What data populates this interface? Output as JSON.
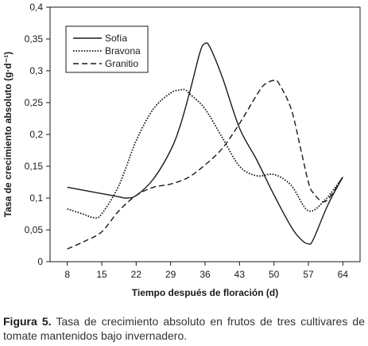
{
  "chart_data": {
    "type": "line",
    "xlabel": "Tiempo después de floración (d)",
    "ylabel": "Tasa de crecimiento absoluto (g·d⁻¹)",
    "x_ticks": [
      8,
      15,
      22,
      29,
      36,
      43,
      50,
      57,
      64
    ],
    "y_ticks": [
      "0",
      "0,05",
      "0,1",
      "0,15",
      "0,2",
      "0,25",
      "0,3",
      "0,35",
      "0,4"
    ],
    "xlim": [
      4.5,
      67.5
    ],
    "ylim": [
      0,
      0.4
    ],
    "grid": false,
    "legend_position": "top-left",
    "series": [
      {
        "name": "Sofía",
        "style": "solid",
        "x": [
          8,
          11.5,
          15,
          18.5,
          20,
          22,
          25.5,
          29,
          31,
          33,
          35,
          36,
          37,
          39.5,
          43,
          46.5,
          50,
          53.5,
          55.5,
          57,
          58,
          61,
          64
        ],
        "y": [
          0.117,
          0.112,
          0.107,
          0.102,
          0.1,
          0.104,
          0.13,
          0.175,
          0.215,
          0.27,
          0.33,
          0.343,
          0.337,
          0.29,
          0.21,
          0.16,
          0.105,
          0.055,
          0.035,
          0.028,
          0.035,
          0.09,
          0.133
        ]
      },
      {
        "name": "Bravona",
        "style": "dotted",
        "x": [
          8,
          11.5,
          13.5,
          15,
          18.5,
          22,
          25.5,
          29,
          31,
          32,
          33,
          36,
          39.5,
          43,
          46.5,
          50,
          53.5,
          57,
          60.5,
          64
        ],
        "y": [
          0.083,
          0.074,
          0.069,
          0.075,
          0.12,
          0.19,
          0.24,
          0.265,
          0.27,
          0.27,
          0.263,
          0.24,
          0.195,
          0.15,
          0.135,
          0.137,
          0.12,
          0.08,
          0.098,
          0.133
        ]
      },
      {
        "name": "Granitio",
        "style": "dashed",
        "x": [
          8,
          11.5,
          15,
          18.5,
          22,
          25.5,
          29,
          32.5,
          36,
          39.5,
          43,
          46.5,
          48,
          50,
          51,
          53.5,
          55.5,
          57,
          58,
          60.5,
          64
        ],
        "y": [
          0.02,
          0.032,
          0.047,
          0.08,
          0.104,
          0.117,
          0.122,
          0.132,
          0.152,
          0.178,
          0.217,
          0.262,
          0.278,
          0.285,
          0.28,
          0.24,
          0.175,
          0.125,
          0.108,
          0.095,
          0.133
        ]
      }
    ]
  },
  "caption": {
    "figure_label": "Figura 5.",
    "text": " Tasa de crecimiento absoluto en frutos de tres cultivares de tomate mantenidos bajo invernadero."
  }
}
